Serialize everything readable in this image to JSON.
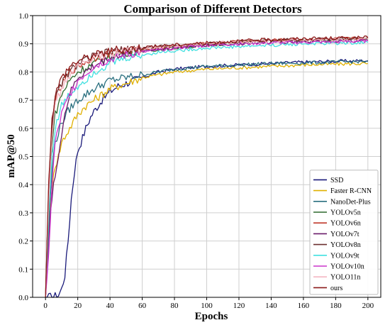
{
  "chart_data": {
    "type": "line",
    "title": "Comparison of Different Detectors",
    "xlabel": "Epochs",
    "ylabel": "mAP@50",
    "xlim": [
      -8,
      208
    ],
    "ylim": [
      0.0,
      1.0
    ],
    "xticks": [
      0,
      20,
      40,
      60,
      80,
      100,
      120,
      140,
      160,
      180,
      200
    ],
    "yticks": [
      0.0,
      0.1,
      0.2,
      0.3,
      0.4,
      0.5,
      0.6,
      0.7,
      0.8,
      0.9,
      1.0
    ],
    "grid": true,
    "legend_position": "lower-right",
    "series": [
      {
        "name": "SSD",
        "color": "#1a1a7a",
        "points": [
          [
            0,
            0.0
          ],
          [
            5,
            0.003
          ],
          [
            8,
            0.008
          ],
          [
            10,
            0.03
          ],
          [
            12,
            0.08
          ],
          [
            14,
            0.2
          ],
          [
            16,
            0.35
          ],
          [
            18,
            0.45
          ],
          [
            20,
            0.52
          ],
          [
            22,
            0.55
          ],
          [
            25,
            0.6
          ],
          [
            28,
            0.64
          ],
          [
            30,
            0.66
          ],
          [
            35,
            0.7
          ],
          [
            40,
            0.73
          ],
          [
            45,
            0.75
          ],
          [
            50,
            0.76
          ],
          [
            60,
            0.78
          ],
          [
            70,
            0.8
          ],
          [
            80,
            0.81
          ],
          [
            90,
            0.815
          ],
          [
            100,
            0.82
          ],
          [
            120,
            0.825
          ],
          [
            140,
            0.83
          ],
          [
            160,
            0.835
          ],
          [
            180,
            0.838
          ],
          [
            200,
            0.84
          ]
        ]
      },
      {
        "name": "Faster R-CNN",
        "color": "#e0b000",
        "points": [
          [
            0,
            0.0
          ],
          [
            3,
            0.3
          ],
          [
            5,
            0.45
          ],
          [
            8,
            0.5
          ],
          [
            10,
            0.55
          ],
          [
            15,
            0.6
          ],
          [
            20,
            0.65
          ],
          [
            25,
            0.68
          ],
          [
            30,
            0.7
          ],
          [
            40,
            0.74
          ],
          [
            50,
            0.76
          ],
          [
            60,
            0.78
          ],
          [
            70,
            0.79
          ],
          [
            80,
            0.8
          ],
          [
            90,
            0.805
          ],
          [
            100,
            0.81
          ],
          [
            120,
            0.815
          ],
          [
            140,
            0.82
          ],
          [
            160,
            0.825
          ],
          [
            180,
            0.828
          ],
          [
            200,
            0.83
          ]
        ]
      },
      {
        "name": "NanoDet-Plus",
        "color": "#2a6f7f",
        "points": [
          [
            0,
            0.0
          ],
          [
            2,
            0.25
          ],
          [
            4,
            0.45
          ],
          [
            6,
            0.55
          ],
          [
            10,
            0.62
          ],
          [
            15,
            0.67
          ],
          [
            20,
            0.7
          ],
          [
            30,
            0.74
          ],
          [
            40,
            0.77
          ],
          [
            50,
            0.78
          ],
          [
            60,
            0.79
          ],
          [
            70,
            0.8
          ],
          [
            80,
            0.81
          ],
          [
            90,
            0.815
          ],
          [
            100,
            0.82
          ],
          [
            120,
            0.825
          ],
          [
            140,
            0.83
          ],
          [
            160,
            0.832
          ],
          [
            180,
            0.835
          ],
          [
            200,
            0.838
          ]
        ]
      },
      {
        "name": "YOLOv5n",
        "color": "#2e6b2e",
        "points": [
          [
            0,
            0.0
          ],
          [
            2,
            0.3
          ],
          [
            4,
            0.55
          ],
          [
            6,
            0.65
          ],
          [
            10,
            0.72
          ],
          [
            15,
            0.77
          ],
          [
            20,
            0.8
          ],
          [
            30,
            0.83
          ],
          [
            40,
            0.855
          ],
          [
            50,
            0.87
          ],
          [
            60,
            0.875
          ],
          [
            70,
            0.88
          ],
          [
            80,
            0.885
          ],
          [
            90,
            0.89
          ],
          [
            100,
            0.895
          ],
          [
            120,
            0.905
          ],
          [
            140,
            0.91
          ],
          [
            160,
            0.912
          ],
          [
            180,
            0.915
          ],
          [
            200,
            0.917
          ]
        ]
      },
      {
        "name": "YOLOv6n",
        "color": "#c0392b",
        "points": [
          [
            0,
            0.0
          ],
          [
            2,
            0.35
          ],
          [
            4,
            0.6
          ],
          [
            6,
            0.7
          ],
          [
            10,
            0.75
          ],
          [
            15,
            0.8
          ],
          [
            20,
            0.82
          ],
          [
            30,
            0.85
          ],
          [
            40,
            0.865
          ],
          [
            50,
            0.875
          ],
          [
            60,
            0.88
          ],
          [
            70,
            0.885
          ],
          [
            80,
            0.89
          ],
          [
            90,
            0.895
          ],
          [
            100,
            0.9
          ],
          [
            120,
            0.908
          ],
          [
            140,
            0.912
          ],
          [
            160,
            0.915
          ],
          [
            180,
            0.917
          ],
          [
            200,
            0.92
          ]
        ]
      },
      {
        "name": "YOLOv7t",
        "color": "#6a1b6a",
        "points": [
          [
            0,
            0.0
          ],
          [
            3,
            0.3
          ],
          [
            5,
            0.4
          ],
          [
            7,
            0.45
          ],
          [
            9,
            0.55
          ],
          [
            12,
            0.65
          ],
          [
            15,
            0.72
          ],
          [
            20,
            0.78
          ],
          [
            30,
            0.82
          ],
          [
            40,
            0.85
          ],
          [
            50,
            0.865
          ],
          [
            60,
            0.875
          ],
          [
            70,
            0.88
          ],
          [
            80,
            0.885
          ],
          [
            90,
            0.89
          ],
          [
            100,
            0.895
          ],
          [
            120,
            0.9
          ],
          [
            140,
            0.905
          ],
          [
            160,
            0.908
          ],
          [
            180,
            0.91
          ],
          [
            200,
            0.912
          ]
        ]
      },
      {
        "name": "YOLOv8n",
        "color": "#6b2f2f",
        "points": [
          [
            0,
            0.0
          ],
          [
            2,
            0.4
          ],
          [
            4,
            0.62
          ],
          [
            6,
            0.7
          ],
          [
            10,
            0.76
          ],
          [
            15,
            0.8
          ],
          [
            20,
            0.83
          ],
          [
            30,
            0.855
          ],
          [
            40,
            0.87
          ],
          [
            50,
            0.878
          ],
          [
            60,
            0.885
          ],
          [
            70,
            0.89
          ],
          [
            80,
            0.893
          ],
          [
            90,
            0.897
          ],
          [
            100,
            0.9
          ],
          [
            120,
            0.907
          ],
          [
            140,
            0.912
          ],
          [
            160,
            0.915
          ],
          [
            180,
            0.917
          ],
          [
            200,
            0.92
          ]
        ]
      },
      {
        "name": "YOLOv9t",
        "color": "#40e0e0",
        "points": [
          [
            0,
            0.0
          ],
          [
            2,
            0.3
          ],
          [
            4,
            0.5
          ],
          [
            6,
            0.6
          ],
          [
            10,
            0.68
          ],
          [
            15,
            0.72
          ],
          [
            20,
            0.75
          ],
          [
            30,
            0.8
          ],
          [
            40,
            0.83
          ],
          [
            50,
            0.85
          ],
          [
            60,
            0.86
          ],
          [
            70,
            0.87
          ],
          [
            80,
            0.875
          ],
          [
            90,
            0.88
          ],
          [
            100,
            0.885
          ],
          [
            120,
            0.89
          ],
          [
            140,
            0.895
          ],
          [
            160,
            0.9
          ],
          [
            180,
            0.902
          ],
          [
            200,
            0.905
          ]
        ]
      },
      {
        "name": "YOLOv10n",
        "color": "#cc33cc",
        "points": [
          [
            0,
            0.0
          ],
          [
            2,
            0.15
          ],
          [
            4,
            0.4
          ],
          [
            6,
            0.55
          ],
          [
            8,
            0.6
          ],
          [
            10,
            0.65
          ],
          [
            15,
            0.72
          ],
          [
            20,
            0.77
          ],
          [
            30,
            0.82
          ],
          [
            40,
            0.845
          ],
          [
            50,
            0.86
          ],
          [
            60,
            0.87
          ],
          [
            70,
            0.878
          ],
          [
            80,
            0.885
          ],
          [
            90,
            0.89
          ],
          [
            100,
            0.895
          ],
          [
            120,
            0.9
          ],
          [
            140,
            0.903
          ],
          [
            160,
            0.905
          ],
          [
            180,
            0.907
          ],
          [
            200,
            0.91
          ]
        ]
      },
      {
        "name": "YOLO11n",
        "color": "#f4b6c2",
        "points": [
          [
            0,
            0.0
          ],
          [
            2,
            0.35
          ],
          [
            4,
            0.58
          ],
          [
            6,
            0.68
          ],
          [
            10,
            0.74
          ],
          [
            15,
            0.79
          ],
          [
            20,
            0.82
          ],
          [
            30,
            0.85
          ],
          [
            40,
            0.865
          ],
          [
            50,
            0.875
          ],
          [
            60,
            0.882
          ],
          [
            70,
            0.887
          ],
          [
            80,
            0.892
          ],
          [
            90,
            0.896
          ],
          [
            100,
            0.9
          ],
          [
            120,
            0.906
          ],
          [
            140,
            0.91
          ],
          [
            160,
            0.913
          ],
          [
            180,
            0.915
          ],
          [
            200,
            0.917
          ]
        ]
      },
      {
        "name": "ours",
        "color": "#8b1a1a",
        "points": [
          [
            0,
            0.0
          ],
          [
            2,
            0.42
          ],
          [
            4,
            0.63
          ],
          [
            6,
            0.72
          ],
          [
            10,
            0.78
          ],
          [
            15,
            0.82
          ],
          [
            20,
            0.84
          ],
          [
            30,
            0.86
          ],
          [
            40,
            0.875
          ],
          [
            50,
            0.882
          ],
          [
            60,
            0.888
          ],
          [
            70,
            0.892
          ],
          [
            80,
            0.896
          ],
          [
            90,
            0.9
          ],
          [
            100,
            0.903
          ],
          [
            120,
            0.91
          ],
          [
            140,
            0.915
          ],
          [
            160,
            0.918
          ],
          [
            180,
            0.92
          ],
          [
            200,
            0.922
          ]
        ]
      }
    ]
  }
}
